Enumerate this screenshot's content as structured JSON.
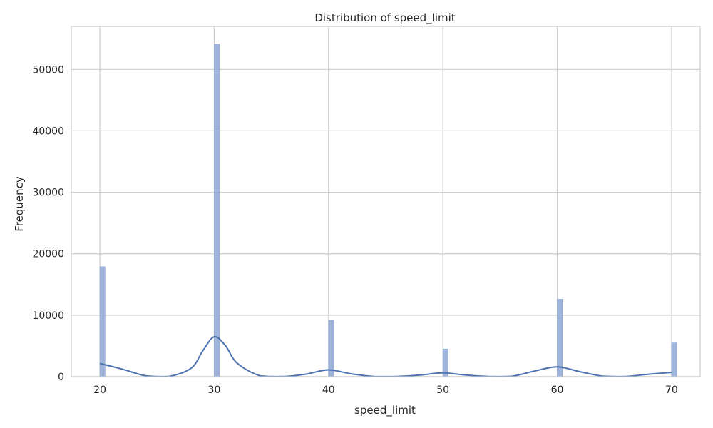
{
  "chart_data": {
    "type": "bar",
    "title": "Distribution of speed_limit",
    "xlabel": "speed_limit",
    "ylabel": "Frequency",
    "xlim": [
      17.5,
      72.5
    ],
    "ylim": [
      0,
      57000
    ],
    "xticks": [
      20,
      30,
      40,
      50,
      60,
      70
    ],
    "yticks": [
      0,
      10000,
      20000,
      30000,
      40000,
      50000
    ],
    "grid": true,
    "bin_width": 0.45,
    "bars": [
      {
        "x": 20,
        "value": 17900
      },
      {
        "x": 30,
        "value": 54100
      },
      {
        "x": 40,
        "value": 9200
      },
      {
        "x": 50,
        "value": 4500
      },
      {
        "x": 60,
        "value": 12600
      },
      {
        "x": 70,
        "value": 5500
      }
    ],
    "kde": {
      "x": [
        20,
        22,
        24,
        26,
        28,
        29,
        30,
        31,
        32,
        34,
        36,
        38,
        40,
        42,
        44,
        46,
        48,
        50,
        52,
        54,
        56,
        58,
        60,
        62,
        64,
        66,
        68,
        70
      ],
      "y": [
        2150,
        1200,
        150,
        20,
        1400,
        4200,
        6500,
        5000,
        2200,
        150,
        20,
        400,
        1100,
        450,
        40,
        40,
        250,
        600,
        250,
        40,
        60,
        900,
        1600,
        800,
        80,
        40,
        400,
        700
      ]
    },
    "colors": {
      "bar_fill": "#9fb5db",
      "bar_edge": "#8aa2cf",
      "kde_line": "#4c72b0",
      "grid": "#cccccc",
      "frame": "#cccccc"
    }
  }
}
